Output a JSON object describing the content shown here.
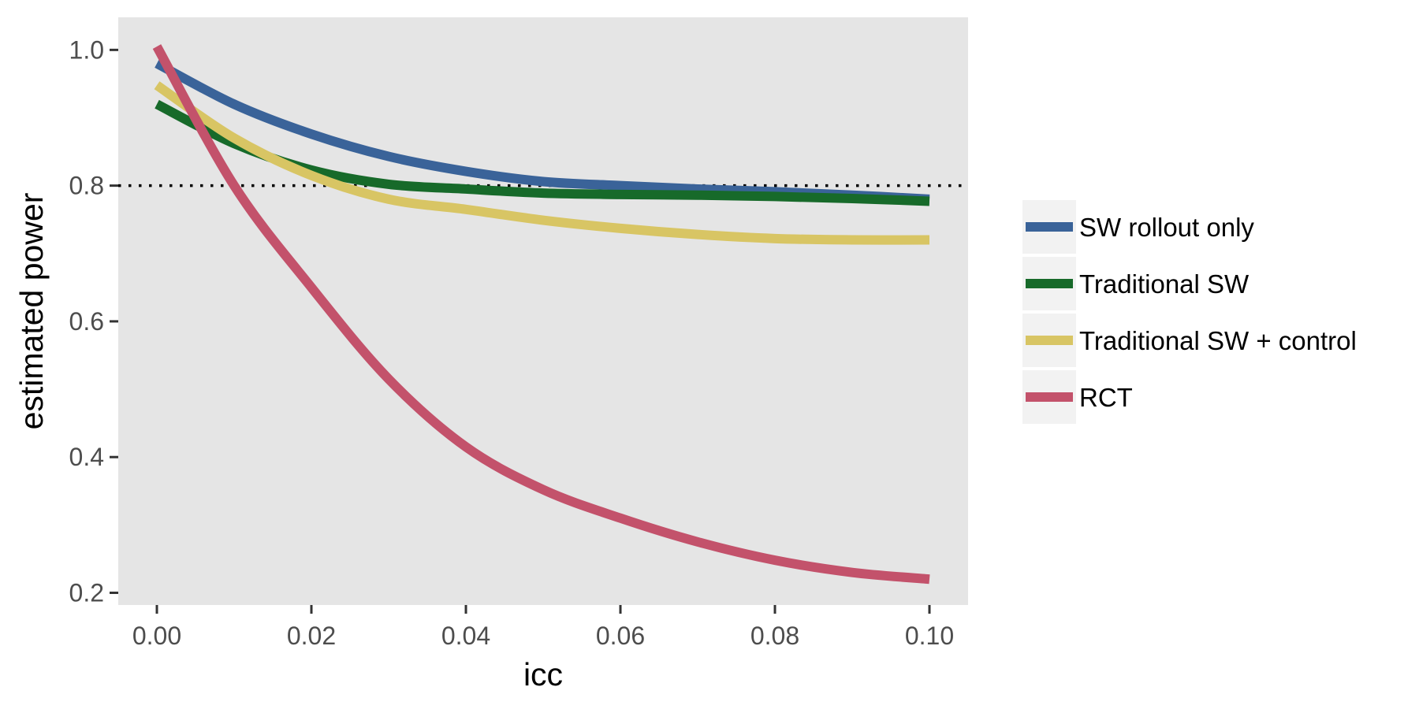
{
  "chart_data": {
    "type": "line",
    "title": "",
    "xlabel": "icc",
    "ylabel": "estimated power",
    "xlim": [
      -0.005,
      0.105
    ],
    "ylim": [
      0.182,
      1.048
    ],
    "x_ticks": [
      0.0,
      0.02,
      0.04,
      0.06,
      0.08,
      0.1
    ],
    "x_tick_labels": [
      "0.00",
      "0.02",
      "0.04",
      "0.06",
      "0.08",
      "0.10"
    ],
    "y_ticks": [
      0.2,
      0.4,
      0.6,
      0.8,
      1.0
    ],
    "y_tick_labels": [
      "0.2",
      "0.4",
      "0.6",
      "0.8",
      "1.0"
    ],
    "grid": false,
    "legend_position": "right",
    "reference_line": {
      "y": 0.8,
      "style": "dotted",
      "color": "#000000"
    },
    "background": "#e5e5e5",
    "series": [
      {
        "name": "SW rollout only",
        "color": "#3a6399",
        "x": [
          0,
          0.01,
          0.02,
          0.03,
          0.04,
          0.05,
          0.06,
          0.07,
          0.08,
          0.09,
          0.1
        ],
        "y": [
          0.98,
          0.92,
          0.876,
          0.843,
          0.821,
          0.806,
          0.8,
          0.795,
          0.791,
          0.786,
          0.78
        ]
      },
      {
        "name": "Traditional SW",
        "color": "#176a2a",
        "x": [
          0,
          0.01,
          0.02,
          0.03,
          0.04,
          0.05,
          0.06,
          0.07,
          0.08,
          0.09,
          0.1
        ],
        "y": [
          0.92,
          0.862,
          0.823,
          0.802,
          0.795,
          0.789,
          0.787,
          0.786,
          0.784,
          0.781,
          0.777
        ]
      },
      {
        "name": "Traditional SW + control",
        "color": "#d8c564",
        "x": [
          0,
          0.01,
          0.02,
          0.03,
          0.04,
          0.05,
          0.06,
          0.07,
          0.08,
          0.09,
          0.1
        ],
        "y": [
          0.948,
          0.87,
          0.815,
          0.78,
          0.765,
          0.749,
          0.737,
          0.728,
          0.722,
          0.72,
          0.72
        ]
      },
      {
        "name": "RCT",
        "color": "#c3526b",
        "x": [
          0,
          0.01,
          0.02,
          0.03,
          0.04,
          0.05,
          0.06,
          0.07,
          0.08,
          0.09,
          0.1
        ],
        "y": [
          1.005,
          0.8,
          0.65,
          0.515,
          0.415,
          0.352,
          0.31,
          0.275,
          0.248,
          0.23,
          0.22
        ]
      }
    ]
  }
}
